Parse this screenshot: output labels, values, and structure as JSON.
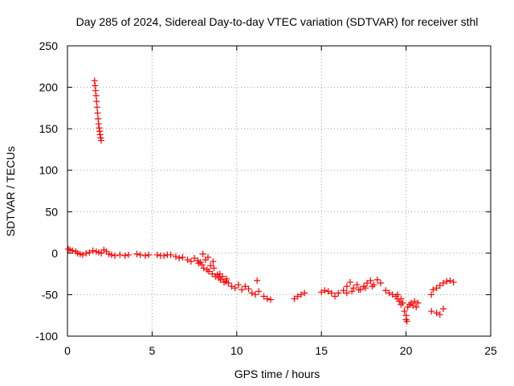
{
  "chart_data": {
    "type": "scatter",
    "title": "Day 285 of 2024, Sidereal Day-to-day VTEC variation (SDTVAR) for receiver sthl",
    "xlabel": "GPS time / hours",
    "ylabel": "SDTVAR / TECUs",
    "xlim": [
      0,
      25
    ],
    "ylim": [
      -100,
      250
    ],
    "xticks": [
      0,
      5,
      10,
      15,
      20,
      25
    ],
    "yticks": [
      -100,
      -50,
      0,
      50,
      100,
      150,
      200,
      250
    ],
    "grid": true,
    "marker": "+",
    "color": "#ff0000",
    "series": [
      {
        "name": "sthl",
        "x": [
          1.6,
          1.63,
          1.66,
          1.69,
          1.72,
          1.75,
          1.78,
          1.81,
          1.84,
          1.87,
          1.9,
          1.93,
          1.96,
          1.99,
          0.05,
          0.15,
          0.3,
          0.5,
          0.6,
          0.75,
          0.9,
          1.1,
          1.3,
          1.5,
          1.7,
          1.85,
          2.0,
          2.15,
          2.3,
          2.45,
          2.6,
          2.8,
          3.1,
          3.4,
          3.6,
          4.1,
          4.3,
          4.6,
          4.8,
          5.3,
          5.5,
          5.7,
          5.9,
          6.1,
          6.4,
          6.6,
          6.8,
          7.1,
          7.3,
          7.5,
          7.7,
          7.75,
          7.85,
          7.95,
          8.05,
          8.15,
          8.25,
          8.35,
          8.45,
          8.55,
          8.65,
          8.75,
          8.85,
          8.95,
          9.05,
          9.15,
          9.25,
          9.35,
          9.5,
          9.7,
          9.9,
          10.1,
          10.3,
          10.5,
          10.7,
          10.9,
          11.1,
          11.3,
          11.6,
          11.8,
          12.0,
          8.0,
          8.3,
          8.6,
          9.0,
          9.4,
          11.2,
          13.4,
          13.6,
          13.8,
          14.0,
          15.0,
          15.2,
          15.4,
          15.6,
          15.8,
          16.0,
          16.3,
          16.5,
          16.7,
          16.9,
          17.1,
          17.3,
          17.5,
          17.7,
          17.9,
          18.1,
          18.3,
          18.5,
          16.5,
          16.8,
          17.2,
          17.6,
          18.0,
          18.8,
          19.0,
          19.2,
          19.4,
          19.5,
          19.6,
          19.7,
          19.8,
          19.9,
          20.0,
          20.1,
          20.2,
          20.3,
          20.4,
          20.5,
          20.6,
          20.7,
          20.0,
          20.05,
          19.5,
          19.7,
          21.5,
          21.6,
          21.8,
          22.0,
          22.2,
          22.4,
          22.6,
          22.8,
          21.5,
          21.8,
          22.0,
          22.2
        ],
        "y": [
          208,
          202,
          196,
          190,
          183,
          176,
          169,
          162,
          156,
          151,
          147,
          143,
          139,
          136,
          5,
          4,
          3,
          2,
          0,
          -1,
          -2,
          0,
          1,
          3,
          2,
          1,
          0,
          4,
          2,
          -1,
          -2,
          -3,
          -2,
          -3,
          -2,
          -1,
          -2,
          -3,
          -2,
          -2,
          -3,
          -3,
          -2,
          -2,
          -4,
          -6,
          -5,
          -8,
          -10,
          -6,
          -9,
          -12,
          -11,
          -14,
          -18,
          -8,
          -20,
          -22,
          -15,
          -25,
          -18,
          -28,
          -26,
          -30,
          -32,
          -28,
          -35,
          -34,
          -36,
          -40,
          -42,
          -38,
          -44,
          -40,
          -43,
          -48,
          -50,
          -46,
          -52,
          -55,
          -56,
          -1,
          -5,
          -10,
          -25,
          -31,
          -33,
          -55,
          -52,
          -50,
          -48,
          -47,
          -45,
          -46,
          -48,
          -52,
          -48,
          -45,
          -40,
          -35,
          -42,
          -38,
          -44,
          -40,
          -36,
          -33,
          -38,
          -32,
          -36,
          -48,
          -46,
          -44,
          -42,
          -40,
          -45,
          -48,
          -50,
          -52,
          -55,
          -58,
          -62,
          -60,
          -70,
          -75,
          -65,
          -62,
          -60,
          -63,
          -58,
          -65,
          -60,
          -80,
          -82,
          -50,
          -55,
          -50,
          -44,
          -42,
          -39,
          -36,
          -34,
          -33,
          -35,
          -70,
          -72,
          -74,
          -67
        ]
      }
    ]
  }
}
